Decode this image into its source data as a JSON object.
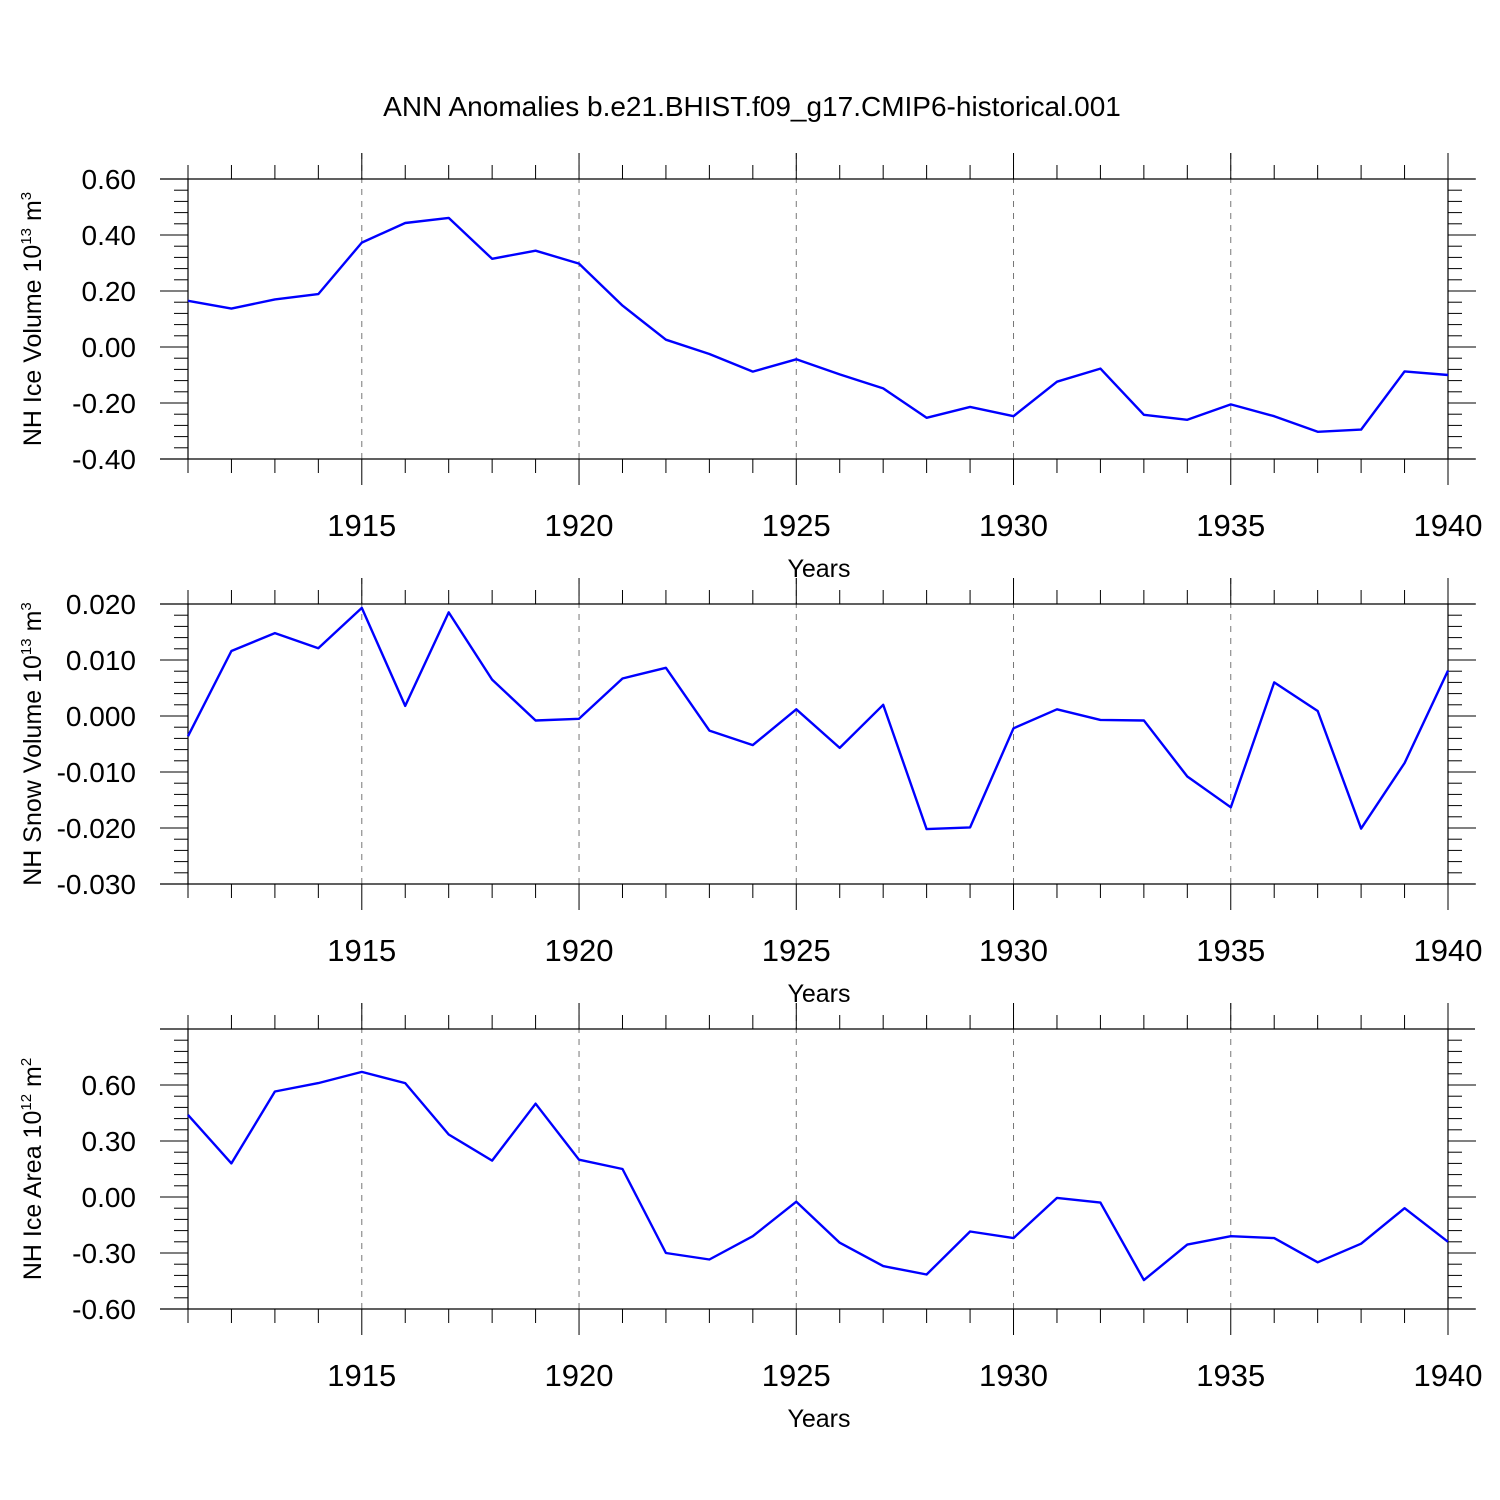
{
  "figure": {
    "title": "ANN Anomalies b.e21.BHIST.f09_g17.CMIP6-historical.001"
  },
  "chart_data": [
    {
      "type": "line",
      "xlabel": "Years",
      "ylabel": "NH Ice Volume 10",
      "ylabel_exp": "13",
      "ylabel_unit": "m",
      "ylabel_unit_exp": "3",
      "xlim": [
        1911,
        1940
      ],
      "ylim": [
        -0.4,
        0.6
      ],
      "xticks": [
        1915,
        1920,
        1925,
        1930,
        1935,
        1940
      ],
      "yticks": [
        0.6,
        0.4,
        0.2,
        0.0,
        -0.2,
        -0.4
      ],
      "ytick_labels": [
        "0.60",
        "0.40",
        "0.20",
        "0.00",
        "-0.20",
        "-0.40"
      ],
      "grid": "vertical dashed at major x ticks",
      "line_color": "#0000ff",
      "x": [
        1911,
        1912,
        1913,
        1914,
        1915,
        1916,
        1917,
        1918,
        1919,
        1920,
        1921,
        1922,
        1923,
        1924,
        1925,
        1926,
        1927,
        1928,
        1929,
        1930,
        1931,
        1932,
        1933,
        1934,
        1935,
        1936,
        1937,
        1938,
        1939,
        1940
      ],
      "y": [
        0.165,
        0.137,
        0.17,
        0.189,
        0.373,
        0.443,
        0.461,
        0.315,
        0.344,
        0.298,
        0.148,
        0.026,
        -0.025,
        -0.088,
        -0.044,
        -0.098,
        -0.148,
        -0.253,
        -0.214,
        -0.247,
        -0.124,
        -0.077,
        -0.242,
        -0.26,
        -0.205,
        -0.247,
        -0.303,
        -0.295,
        -0.087,
        -0.1
      ]
    },
    {
      "type": "line",
      "xlabel": "Years",
      "ylabel": "NH Snow Volume 10",
      "ylabel_exp": "13",
      "ylabel_unit": "m",
      "ylabel_unit_exp": "3",
      "xlim": [
        1911,
        1940
      ],
      "ylim": [
        -0.03,
        0.02
      ],
      "xticks": [
        1915,
        1920,
        1925,
        1930,
        1935,
        1940
      ],
      "yticks": [
        0.02,
        0.01,
        0.0,
        -0.01,
        -0.02,
        -0.03
      ],
      "ytick_labels": [
        "0.020",
        "0.010",
        "0.000",
        "-0.010",
        "-0.020",
        "-0.030"
      ],
      "grid": "vertical dashed at major x ticks",
      "line_color": "#0000ff",
      "x": [
        1911,
        1912,
        1913,
        1914,
        1915,
        1916,
        1917,
        1918,
        1919,
        1920,
        1921,
        1922,
        1923,
        1924,
        1925,
        1926,
        1927,
        1928,
        1929,
        1930,
        1931,
        1932,
        1933,
        1934,
        1935,
        1936,
        1937,
        1938,
        1939,
        1940
      ],
      "y": [
        -0.0036,
        0.0116,
        0.0148,
        0.0121,
        0.0193,
        0.0018,
        0.0185,
        0.0065,
        -0.0008,
        -0.0005,
        0.0067,
        0.0086,
        -0.0026,
        -0.0052,
        0.0012,
        -0.0057,
        0.002,
        -0.0202,
        -0.0199,
        -0.0022,
        0.0012,
        -0.0007,
        -0.0008,
        -0.0108,
        -0.0163,
        0.006,
        0.0009,
        -0.0201,
        -0.0084,
        0.0081
      ]
    },
    {
      "type": "line",
      "xlabel": "Years",
      "ylabel": "NH Ice Area 10",
      "ylabel_exp": "12",
      "ylabel_unit": "m",
      "ylabel_unit_exp": "2",
      "xlim": [
        1911,
        1940
      ],
      "ylim": [
        -0.6,
        0.9
      ],
      "xticks": [
        1915,
        1920,
        1925,
        1930,
        1935,
        1940
      ],
      "yticks": [
        0.6,
        0.3,
        0.0,
        -0.3,
        -0.6
      ],
      "ytick_labels": [
        "0.60",
        "0.30",
        "0.00",
        "-0.30",
        "-0.60"
      ],
      "grid": "vertical dashed at major x ticks",
      "line_color": "#0000ff",
      "x": [
        1911,
        1912,
        1913,
        1914,
        1915,
        1916,
        1917,
        1918,
        1919,
        1920,
        1921,
        1922,
        1923,
        1924,
        1925,
        1926,
        1927,
        1928,
        1929,
        1930,
        1931,
        1932,
        1933,
        1934,
        1935,
        1936,
        1937,
        1938,
        1939,
        1940
      ],
      "y": [
        0.44,
        0.18,
        0.565,
        0.61,
        0.67,
        0.61,
        0.335,
        0.195,
        0.5,
        0.2,
        0.15,
        -0.3,
        -0.335,
        -0.21,
        -0.025,
        -0.245,
        -0.37,
        -0.415,
        -0.185,
        -0.22,
        -0.005,
        -0.03,
        -0.445,
        -0.255,
        -0.21,
        -0.22,
        -0.35,
        -0.25,
        -0.06,
        -0.24
      ]
    }
  ]
}
